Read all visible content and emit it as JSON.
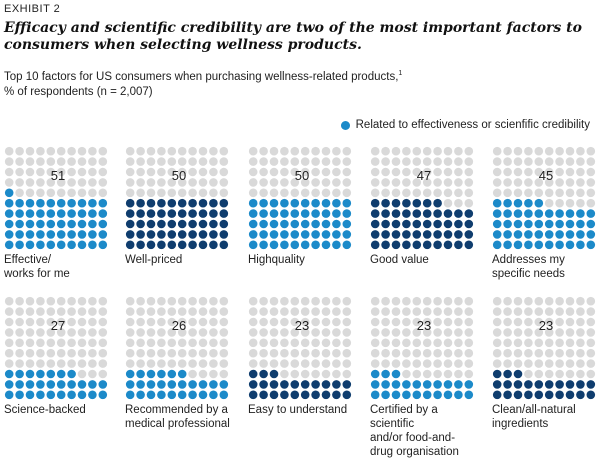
{
  "header": {
    "exhibit": "EXHIBIT 2",
    "title": "Efficacy and scientific credibility are two of the most important factors to consumers when selecting wellness products.",
    "subtitle_line1": "Top 10 factors for US consumers when purchasing wellness-related products,",
    "subtitle_sup": "1",
    "subtitle_line2": "% of respondents (n = 2,007)"
  },
  "legend": {
    "label": "Related to effectiveness or scienfific credibility"
  },
  "colors": {
    "empty": "#d9d9d9",
    "dark": "#0f3d6e",
    "light": "#1c8ac9"
  },
  "chart_data": {
    "type": "waffle",
    "grid": "10x10 dots, each dot = 1% of respondents",
    "legend_placement": "top-right",
    "categories": [
      "Effective/\nworks for me",
      "Well-priced",
      "Highquality",
      "Good value",
      "Addresses my\nspecific needs",
      "Science-backed",
      "Recommended by a\nmedical professional",
      "Easy to understand",
      "Certified by a scientific\nand/or food-and-\ndrug organisation",
      "Clean/all-natural\ningredients"
    ],
    "values": [
      51,
      50,
      50,
      47,
      45,
      27,
      26,
      23,
      23,
      23
    ],
    "related_to_effectiveness": [
      true,
      false,
      true,
      false,
      true,
      true,
      true,
      false,
      true,
      false
    ]
  }
}
